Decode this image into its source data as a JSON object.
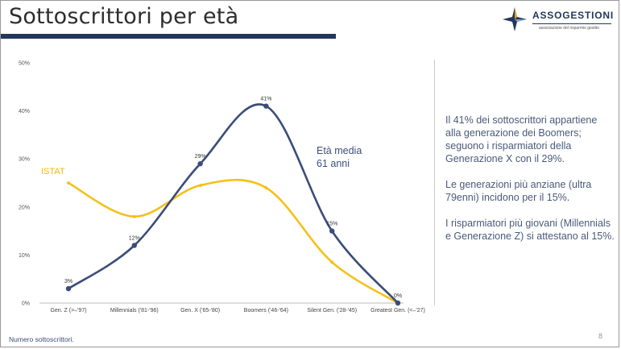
{
  "header": {
    "title": "Sottoscrittori per età",
    "logo_name": "ASSOGESTIONI",
    "logo_tagline": "associazione del risparmio gestito"
  },
  "colors": {
    "subscribers": "#3a4d78",
    "istat": "#f5c018",
    "title_rule": "#23365c"
  },
  "chart_data": {
    "type": "line",
    "categories": [
      "Gen. Z (>–'97)",
      "Millennials ('81-'96)",
      "Gen. X ('65-'80)",
      "Boomers ('46-'64)",
      "Silent Gen. ('28-'45)",
      "Greatest Gen. (<–'27)"
    ],
    "ylim": [
      0,
      50
    ],
    "yticks": [
      "0%",
      "10%",
      "20%",
      "30%",
      "40%",
      "50%"
    ],
    "ytick_values": [
      0,
      10,
      20,
      30,
      40,
      50
    ],
    "grid": false,
    "series": [
      {
        "key": "subscribers",
        "values": [
          3,
          12,
          29,
          41,
          15,
          0
        ],
        "labels": [
          "3%",
          "12%",
          "29%",
          "41%",
          "15%",
          "0%"
        ],
        "markers": true
      },
      {
        "key": "istat",
        "name": "ISTAT",
        "values": [
          25,
          18,
          24.5,
          24,
          8.5,
          0
        ],
        "markers": true
      }
    ],
    "annotation": {
      "line1": "Età media",
      "line2": "61 anni"
    }
  },
  "side_panel": {
    "paragraphs": [
      "Il 41% dei sottoscrittori appartiene alla generazione dei Boomers; seguono i risparmiatori della Generazione X con il 29%.",
      "Le generazioni più anziane (ultra 79enni) incidono per il 15%.",
      "I risparmiatori più giovani (Millennials e Generazione Z) si attestano al 15%."
    ]
  },
  "footer": {
    "note": "Numero sottoscrittori.",
    "page_number": "8"
  }
}
